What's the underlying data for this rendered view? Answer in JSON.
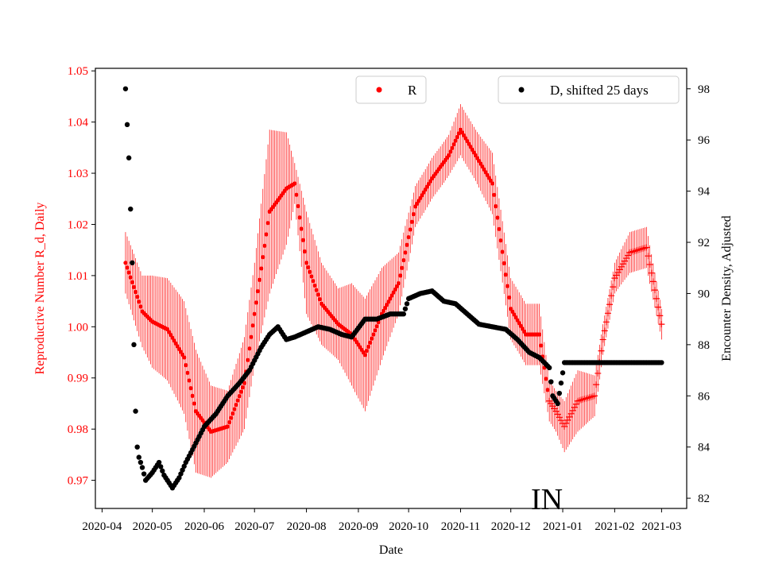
{
  "chart_data": {
    "type": "scatter",
    "xlabel": "Date",
    "left_axis": {
      "label": "Reproductive Number R_d, Daily",
      "color": "#ff0000",
      "ylim": [
        0.9645,
        1.0505
      ],
      "ticks": [
        0.97,
        0.98,
        0.99,
        1.0,
        1.01,
        1.02,
        1.03,
        1.04,
        1.05
      ],
      "tick_labels": [
        "0.97",
        "0.98",
        "0.99",
        "1.00",
        "1.01",
        "1.02",
        "1.03",
        "1.04",
        "1.05"
      ]
    },
    "right_axis": {
      "label": "Encounter Density, Adjusted",
      "color": "#000000",
      "ylim": [
        81.6,
        98.8
      ],
      "ticks": [
        82,
        84,
        86,
        88,
        90,
        92,
        94,
        96,
        98
      ],
      "tick_labels": [
        "82",
        "84",
        "86",
        "88",
        "90",
        "92",
        "94",
        "96",
        "98"
      ]
    },
    "x_axis": {
      "xlim": [
        "2020-03-28",
        "2021-03-16"
      ],
      "ticks": [
        "2020-04-01",
        "2020-05-01",
        "2020-06-01",
        "2020-07-01",
        "2020-08-01",
        "2020-09-01",
        "2020-10-01",
        "2020-11-01",
        "2020-12-01",
        "2021-01-01",
        "2021-02-01",
        "2021-03-01"
      ],
      "tick_labels": [
        "2020-04",
        "2020-05",
        "2020-06",
        "2020-07",
        "2020-08",
        "2020-09",
        "2020-10",
        "2020-11",
        "2020-12",
        "2021-01",
        "2021-02",
        "2021-03"
      ]
    },
    "annotation": "IN",
    "series": [
      {
        "name": "R",
        "axis": "left",
        "color": "#ff0000",
        "marker": "dot",
        "projected_marker": "plus",
        "projected_from": "2020-12-24",
        "errorbars": true,
        "x": [
          "2020-04-15",
          "2020-04-25",
          "2020-05-01",
          "2020-05-10",
          "2020-05-20",
          "2020-05-27",
          "2020-06-05",
          "2020-06-15",
          "2020-06-25",
          "2020-07-01",
          "2020-07-10",
          "2020-07-20",
          "2020-07-25",
          "2020-08-01",
          "2020-08-10",
          "2020-08-20",
          "2020-08-28",
          "2020-09-05",
          "2020-09-15",
          "2020-09-25",
          "2020-10-05",
          "2020-10-15",
          "2020-10-25",
          "2020-11-01",
          "2020-11-10",
          "2020-11-20",
          "2020-12-01",
          "2020-12-10",
          "2020-12-18",
          "2020-12-24",
          "2020-12-28",
          "2021-01-02",
          "2021-01-10",
          "2021-01-20",
          "2021-01-25",
          "2021-02-01",
          "2021-02-10",
          "2021-02-20",
          "2021-03-01"
        ],
        "y": [
          1.0125,
          1.003,
          1.001,
          0.9995,
          0.994,
          0.9835,
          0.9795,
          0.9805,
          0.989,
          1.0025,
          1.0225,
          1.027,
          1.028,
          1.0125,
          1.0045,
          1.0005,
          0.9985,
          0.9945,
          1.0025,
          1.0085,
          1.0235,
          1.029,
          1.0335,
          1.0385,
          1.0335,
          1.028,
          1.0035,
          0.9985,
          0.9985,
          0.9855,
          0.9835,
          0.9805,
          0.9855,
          0.9865,
          0.9975,
          1.0095,
          1.0145,
          1.0155,
          1.0005
        ],
        "err": [
          0.006,
          0.007,
          0.009,
          0.01,
          0.011,
          0.012,
          0.009,
          0.007,
          0.009,
          0.01,
          0.016,
          0.011,
          0.004,
          0.01,
          0.008,
          0.007,
          0.01,
          0.011,
          0.009,
          0.006,
          0.004,
          0.004,
          0.004,
          0.005,
          0.005,
          0.006,
          0.006,
          0.006,
          0.006,
          0.004,
          0.004,
          0.005,
          0.006,
          0.004,
          0.003,
          0.003,
          0.004,
          0.004,
          0.003
        ]
      },
      {
        "name": "D, shifted 25 days",
        "axis": "right",
        "color": "#000000",
        "marker": "dot",
        "x": [
          "2020-04-15",
          "2020-04-16",
          "2020-04-17",
          "2020-04-18",
          "2020-04-19",
          "2020-04-20",
          "2020-04-21",
          "2020-04-22",
          "2020-04-23",
          "2020-04-25",
          "2020-04-27",
          "2020-05-01",
          "2020-05-05",
          "2020-05-08",
          "2020-05-13",
          "2020-05-17",
          "2020-05-21",
          "2020-05-25",
          "2020-06-01",
          "2020-06-08",
          "2020-06-15",
          "2020-06-22",
          "2020-06-28",
          "2020-07-05",
          "2020-07-10",
          "2020-07-15",
          "2020-07-20",
          "2020-07-25",
          "2020-08-01",
          "2020-08-08",
          "2020-08-15",
          "2020-08-22",
          "2020-08-28",
          "2020-09-05",
          "2020-09-12",
          "2020-09-20",
          "2020-09-28",
          "2020-10-01",
          "2020-10-08",
          "2020-10-15",
          "2020-10-22",
          "2020-10-29",
          "2020-11-05",
          "2020-11-12",
          "2020-11-20",
          "2020-11-28",
          "2020-12-05",
          "2020-12-12",
          "2020-12-18",
          "2020-12-24",
          "2020-12-26",
          "2020-12-29",
          "2021-01-02",
          "2021-01-10",
          "2021-01-20",
          "2021-02-01",
          "2021-02-15",
          "2021-03-01"
        ],
        "y": [
          98.0,
          96.6,
          95.3,
          93.3,
          91.2,
          88.0,
          85.4,
          84.0,
          83.6,
          83.2,
          82.7,
          83.0,
          83.4,
          82.9,
          82.4,
          82.8,
          83.4,
          83.9,
          84.8,
          85.3,
          86.0,
          86.5,
          87.0,
          87.9,
          88.4,
          88.7,
          88.2,
          88.3,
          88.5,
          88.7,
          88.6,
          88.4,
          88.3,
          89.0,
          89.0,
          89.2,
          89.2,
          89.8,
          90.0,
          90.1,
          89.7,
          89.6,
          89.2,
          88.8,
          88.7,
          88.6,
          88.2,
          87.7,
          87.5,
          87.1,
          86.0,
          85.7,
          87.3,
          87.3,
          87.3,
          87.3,
          87.3,
          87.3
        ]
      }
    ],
    "legend": [
      {
        "label": "R",
        "color": "#ff0000",
        "location": "top-center"
      },
      {
        "label": "D, shifted 25 days",
        "color": "#000000",
        "location": "top-right"
      }
    ]
  }
}
